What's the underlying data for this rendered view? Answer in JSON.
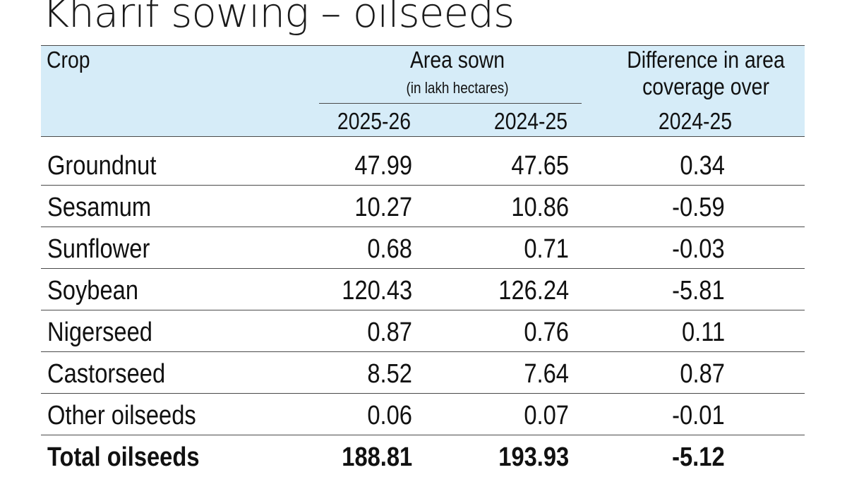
{
  "title": "Kharif sowing – oilseeds",
  "header": {
    "crop": "Crop",
    "area_sown": "Area sown",
    "unit": "(in lakh hectares)",
    "diff_line1": "Difference in area",
    "diff_line2": "coverage over",
    "year1": "2025-26",
    "year2": "2024-25",
    "year3": "2024-25"
  },
  "rows": [
    {
      "crop": "Groundnut",
      "y2025": "47.99",
      "y2024": "47.65",
      "diff": "0.34"
    },
    {
      "crop": "Sesamum",
      "y2025": "10.27",
      "y2024": "10.86",
      "diff": "-0.59"
    },
    {
      "crop": "Sunflower",
      "y2025": "0.68",
      "y2024": "0.71",
      "diff": "-0.03"
    },
    {
      "crop": "Soybean",
      "y2025": "120.43",
      "y2024": "126.24",
      "diff": "-5.81"
    },
    {
      "crop": "Nigerseed",
      "y2025": "0.87",
      "y2024": "0.76",
      "diff": "0.11"
    },
    {
      "crop": "Castorseed",
      "y2025": "8.52",
      "y2024": "7.64",
      "diff": "0.87"
    },
    {
      "crop": "Other oilseeds",
      "y2025": "0.06",
      "y2024": "0.07",
      "diff": "-0.01"
    }
  ],
  "total": {
    "crop": "Total oilseeds",
    "y2025": "188.81",
    "y2024": "193.93",
    "diff": "-5.12"
  },
  "colors": {
    "header_background": "#d6ecf8",
    "rule": "#4a4a4a",
    "text": "#111111"
  }
}
